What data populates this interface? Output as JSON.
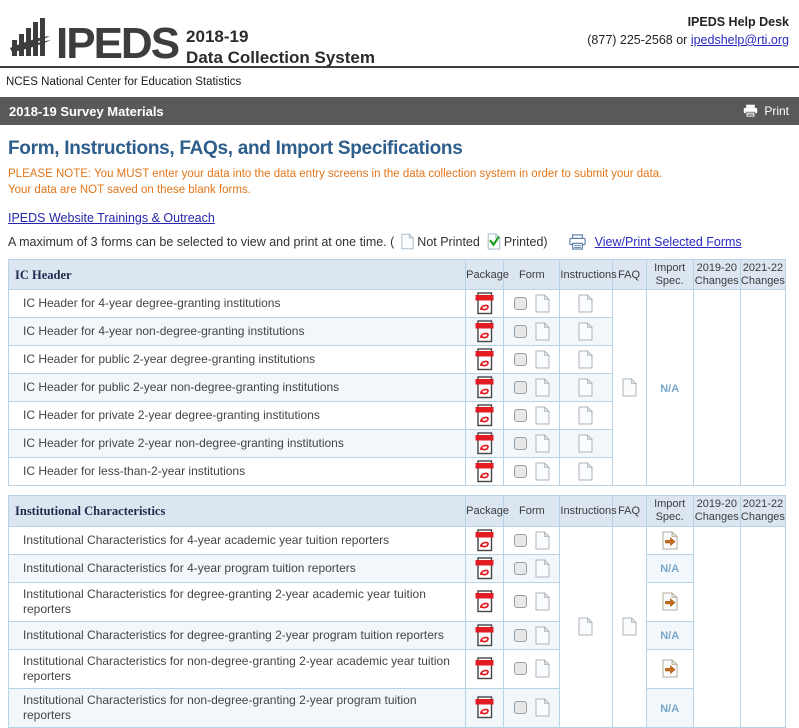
{
  "header": {
    "logo_text": "IPEDS",
    "title_line1": "2018-19",
    "title_line2": "Data Collection System",
    "help_desk": "IPEDS Help Desk",
    "phone": "(877) 225-2568",
    "or_text": "or",
    "email_link": "ipedshelp@rti.org",
    "nces_line": "NCES National Center for Education Statistics"
  },
  "title_bar": {
    "title": "2018-19 Survey Materials",
    "print_label": "Print"
  },
  "intro": {
    "page_title": "Form, Instructions, FAQs, and Import Specifications",
    "note_line1": "PLEASE NOTE: You MUST enter your data into the data entry screens in the data collection system in order to submit your data.",
    "note_line2": "Your data are NOT saved on these blank forms.",
    "trainings_link": "IPEDS Website Trainings & Outreach",
    "max_prefix": "A maximum of 3 forms can be selected to view and print at one time. (",
    "not_printed_label": "Not Printed",
    "printed_label": "Printed)",
    "view_print_link": "View/Print Selected Forms"
  },
  "columns": [
    "Package",
    "Form",
    "Instructions",
    "FAQ",
    "Import\nSpec.",
    "2019-20\nChanges",
    "2021-22\nChanges"
  ],
  "na_label": "N/A",
  "tables": [
    {
      "section": "IC Header",
      "instructions_mode": "per-row",
      "import_mode": "merged",
      "merged": {
        "faq": "page",
        "import": "N/A",
        "changes_19_20": "",
        "changes_21_22": ""
      },
      "rows": [
        {
          "name": "IC Header for 4-year degree-granting institutions"
        },
        {
          "name": "IC Header for 4-year non-degree-granting institutions"
        },
        {
          "name": "IC Header for public 2-year degree-granting institutions"
        },
        {
          "name": "IC Header for public 2-year non-degree-granting institutions"
        },
        {
          "name": "IC Header for private 2-year degree-granting institutions"
        },
        {
          "name": "IC Header for private 2-year non-degree-granting institutions"
        },
        {
          "name": "IC Header for less-than-2-year institutions"
        }
      ]
    },
    {
      "section": "Institutional Characteristics",
      "instructions_mode": "merged",
      "import_mode": "per-row",
      "merged": {
        "instructions": "page",
        "faq": "page",
        "changes_19_20": "",
        "changes_21_22": ""
      },
      "rows": [
        {
          "name": "Institutional Characteristics for 4-year academic year tuition reporters",
          "import": "icon"
        },
        {
          "name": "Institutional Characteristics for 4-year program tuition reporters",
          "import": "N/A"
        },
        {
          "name": "Institutional Characteristics for degree-granting 2-year academic year tuition reporters",
          "import": "icon"
        },
        {
          "name": "Institutional Characteristics for degree-granting 2-year program tuition reporters",
          "import": "N/A"
        },
        {
          "name": "Institutional Characteristics for non-degree-granting 2-year academic year tuition reporters",
          "import": "icon"
        },
        {
          "name": "Institutional Characteristics for non-degree-granting 2-year program tuition reporters",
          "import": "N/A"
        }
      ]
    }
  ],
  "colors": {
    "heading_blue": "#2E5E8C",
    "note_orange": "#E0761A",
    "bar_gray": "#595959",
    "link_blue": "#2A2AC4",
    "na_blue": "#79A7C9",
    "pdf_red": "#E31B23",
    "import_arrow_orange": "#C96F1E",
    "printed_check_green": "#1E9E1E",
    "table_header_bg": "#DCE6F1",
    "table_border": "#B9D3E6",
    "row_stripe": "#F2F7FB"
  }
}
